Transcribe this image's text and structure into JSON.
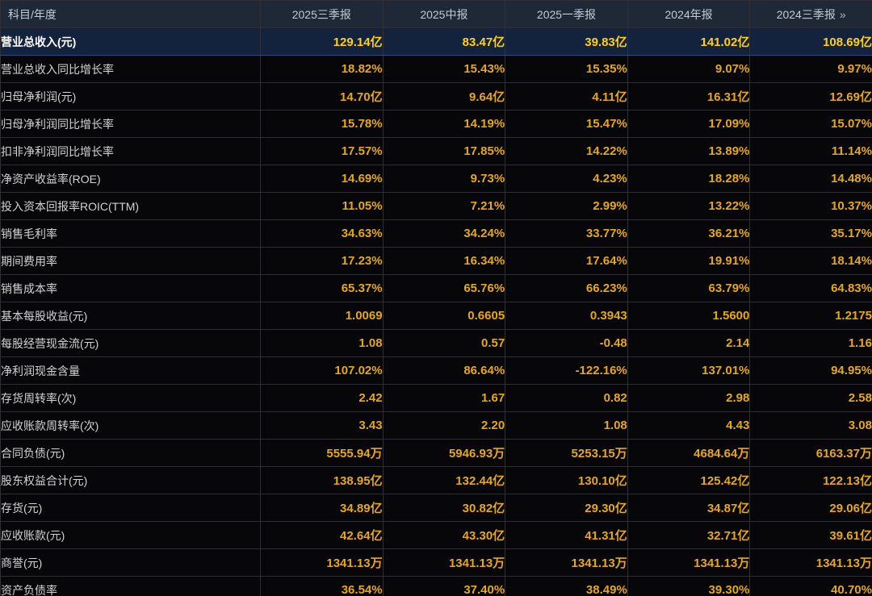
{
  "colors": {
    "value_text": "#e6a817",
    "highlight_value_text": "#ffd014",
    "highlight_row_bg": "#13233e",
    "header_bg": "#1f2836",
    "body_bg": "#070709"
  },
  "table": {
    "corner_label": "科目/年度",
    "columns": [
      "2025三季报",
      "2025中报",
      "2025一季报",
      "2024年报",
      "2024三季报"
    ],
    "more_icon": "»",
    "rows": [
      {
        "label": "营业总收入(元)",
        "highlighted": true,
        "values": [
          "129.14亿",
          "83.47亿",
          "39.83亿",
          "141.02亿",
          "108.69亿"
        ]
      },
      {
        "label": "营业总收入同比增长率",
        "highlighted": false,
        "values": [
          "18.82%",
          "15.43%",
          "15.35%",
          "9.07%",
          "9.97%"
        ]
      },
      {
        "label": "归母净利润(元)",
        "highlighted": false,
        "values": [
          "14.70亿",
          "9.64亿",
          "4.11亿",
          "16.31亿",
          "12.69亿"
        ]
      },
      {
        "label": "归母净利润同比增长率",
        "highlighted": false,
        "values": [
          "15.78%",
          "14.19%",
          "15.47%",
          "17.09%",
          "15.07%"
        ]
      },
      {
        "label": "扣非净利润同比增长率",
        "highlighted": false,
        "values": [
          "17.57%",
          "17.85%",
          "14.22%",
          "13.89%",
          "11.14%"
        ]
      },
      {
        "label": "净资产收益率(ROE)",
        "highlighted": false,
        "values": [
          "14.69%",
          "9.73%",
          "4.23%",
          "18.28%",
          "14.48%"
        ]
      },
      {
        "label": "投入资本回报率ROIC(TTM)",
        "highlighted": false,
        "values": [
          "11.05%",
          "7.21%",
          "2.99%",
          "13.22%",
          "10.37%"
        ]
      },
      {
        "label": "销售毛利率",
        "highlighted": false,
        "values": [
          "34.63%",
          "34.24%",
          "33.77%",
          "36.21%",
          "35.17%"
        ]
      },
      {
        "label": "期间费用率",
        "highlighted": false,
        "values": [
          "17.23%",
          "16.34%",
          "17.64%",
          "19.91%",
          "18.14%"
        ]
      },
      {
        "label": "销售成本率",
        "highlighted": false,
        "values": [
          "65.37%",
          "65.76%",
          "66.23%",
          "63.79%",
          "64.83%"
        ]
      },
      {
        "label": "基本每股收益(元)",
        "highlighted": false,
        "values": [
          "1.0069",
          "0.6605",
          "0.3943",
          "1.5600",
          "1.2175"
        ]
      },
      {
        "label": "每股经营现金流(元)",
        "highlighted": false,
        "values": [
          "1.08",
          "0.57",
          "-0.48",
          "2.14",
          "1.16"
        ]
      },
      {
        "label": "净利润现金含量",
        "highlighted": false,
        "values": [
          "107.02%",
          "86.64%",
          "-122.16%",
          "137.01%",
          "94.95%"
        ]
      },
      {
        "label": "存货周转率(次)",
        "highlighted": false,
        "values": [
          "2.42",
          "1.67",
          "0.82",
          "2.98",
          "2.58"
        ]
      },
      {
        "label": "应收账款周转率(次)",
        "highlighted": false,
        "values": [
          "3.43",
          "2.20",
          "1.08",
          "4.43",
          "3.08"
        ]
      },
      {
        "label": "合同负债(元)",
        "highlighted": false,
        "values": [
          "5555.94万",
          "5946.93万",
          "5253.15万",
          "4684.64万",
          "6163.37万"
        ]
      },
      {
        "label": "股东权益合计(元)",
        "highlighted": false,
        "values": [
          "138.95亿",
          "132.44亿",
          "130.10亿",
          "125.42亿",
          "122.13亿"
        ]
      },
      {
        "label": "存货(元)",
        "highlighted": false,
        "values": [
          "34.89亿",
          "30.82亿",
          "29.30亿",
          "34.87亿",
          "29.06亿"
        ]
      },
      {
        "label": "应收账款(元)",
        "highlighted": false,
        "values": [
          "42.64亿",
          "43.30亿",
          "41.31亿",
          "32.71亿",
          "39.61亿"
        ]
      },
      {
        "label": "商誉(元)",
        "highlighted": false,
        "values": [
          "1341.13万",
          "1341.13万",
          "1341.13万",
          "1341.13万",
          "1341.13万"
        ]
      },
      {
        "label": "资产负债率",
        "highlighted": false,
        "values": [
          "36.54%",
          "37.40%",
          "38.49%",
          "39.30%",
          "40.70%"
        ]
      }
    ]
  }
}
